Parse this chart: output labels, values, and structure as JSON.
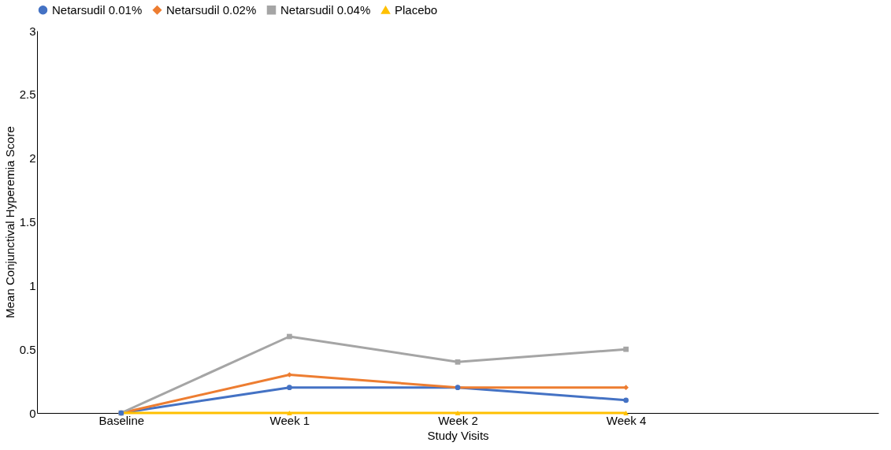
{
  "chart_data": {
    "type": "line",
    "xlabel": "Study Visits",
    "ylabel": "Mean Conjunctival Hyperemia Score",
    "categories": [
      "Baseline",
      "Week 1",
      "Week 2",
      "Week 4",
      null
    ],
    "series": [
      {
        "name": "Netarsudil 0.01%",
        "color": "#4472c4",
        "marker": "circle",
        "values": [
          0,
          0.2,
          0.2,
          0.1,
          null
        ]
      },
      {
        "name": "Netarsudil 0.02%",
        "color": "#ed7d31",
        "marker": "diamond",
        "values": [
          0,
          0.3,
          0.2,
          0.2,
          null
        ]
      },
      {
        "name": "Netarsudil 0.04%",
        "color": "#a5a5a5",
        "marker": "square",
        "values": [
          0,
          0.6,
          0.4,
          0.5,
          null
        ]
      },
      {
        "name": "Placebo",
        "color": "#ffc000",
        "marker": "triangle",
        "values": [
          0,
          0,
          0,
          0,
          null
        ]
      }
    ],
    "ylim": [
      0,
      3
    ],
    "yticks": [
      0,
      0.5,
      1,
      1.5,
      2,
      2.5,
      3
    ],
    "grid": false,
    "legend": "top",
    "line_style": "solid"
  }
}
